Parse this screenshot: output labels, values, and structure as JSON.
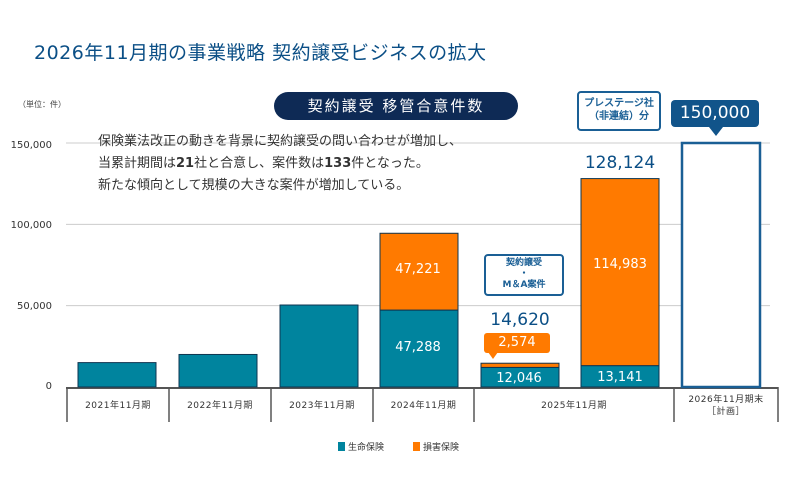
{
  "title": "2026年11月期の事業戦略  契約譲受ビジネスの拡大",
  "unit": "（単位：件）",
  "pill": "契約譲受 移管合意件数",
  "description": {
    "line1": "保険業法改正の動きを背景に契約譲受の問い合わせが増加し、",
    "line2_a": "当累計期間は",
    "line2_b": "21",
    "line2_c": "社と合意し、案件数は",
    "line2_d": "133",
    "line2_e": "件となった。",
    "line3": "新たな傾向として規模の大きな案件が増加している。"
  },
  "callouts": {
    "prestige": "プレステージ社\n（非連結）分",
    "ma": "契約譲受\n・\nM＆A案件",
    "plan": "150,000"
  },
  "colors": {
    "life": "#00849e",
    "nonlife": "#ff7a00",
    "plan_border": "#1a5f95",
    "text": "#0b4f86"
  },
  "chart_data": {
    "type": "bar",
    "stacked": true,
    "ylabel": "（単位：件）",
    "ylim": [
      0,
      150000
    ],
    "yticks": [
      "0",
      "50,000",
      "100,000",
      "150,000"
    ],
    "ytick_values": [
      0,
      50000,
      100000,
      150000
    ],
    "categories": [
      "2021年11月期",
      "2022年11月期",
      "2023年11月期",
      "2024年11月期",
      "2025年11月期",
      "2026年11月期末\n［計画］"
    ],
    "legend": [
      "生命保険",
      "損害保険"
    ],
    "legend_position": "bottom",
    "bars": [
      {
        "category": "2021年11月期",
        "life": 15000,
        "nonlife": 0
      },
      {
        "category": "2022年11月期",
        "life": 20000,
        "nonlife": 0
      },
      {
        "category": "2023年11月期",
        "life": 50400,
        "nonlife": 0
      },
      {
        "category": "2024年11月期",
        "life": 47288,
        "nonlife": 47221,
        "life_label": "47,288",
        "nonlife_label": "47,221"
      },
      {
        "category": "2025年11月期",
        "group": "契約譲受・M＆A案件",
        "life": 12046,
        "nonlife": 2574,
        "life_label": "12,046",
        "nonlife_label": "2,574",
        "total_label": "14,620"
      },
      {
        "category": "2025年11月期",
        "group": "プレステージ社（非連結）分",
        "life": 13141,
        "nonlife": 114983,
        "life_label": "13,141",
        "nonlife_label": "114,983",
        "total_label": "128,124"
      },
      {
        "category": "2026年11月期末［計画］",
        "plan": 150000,
        "total_label": "150,000"
      }
    ]
  }
}
